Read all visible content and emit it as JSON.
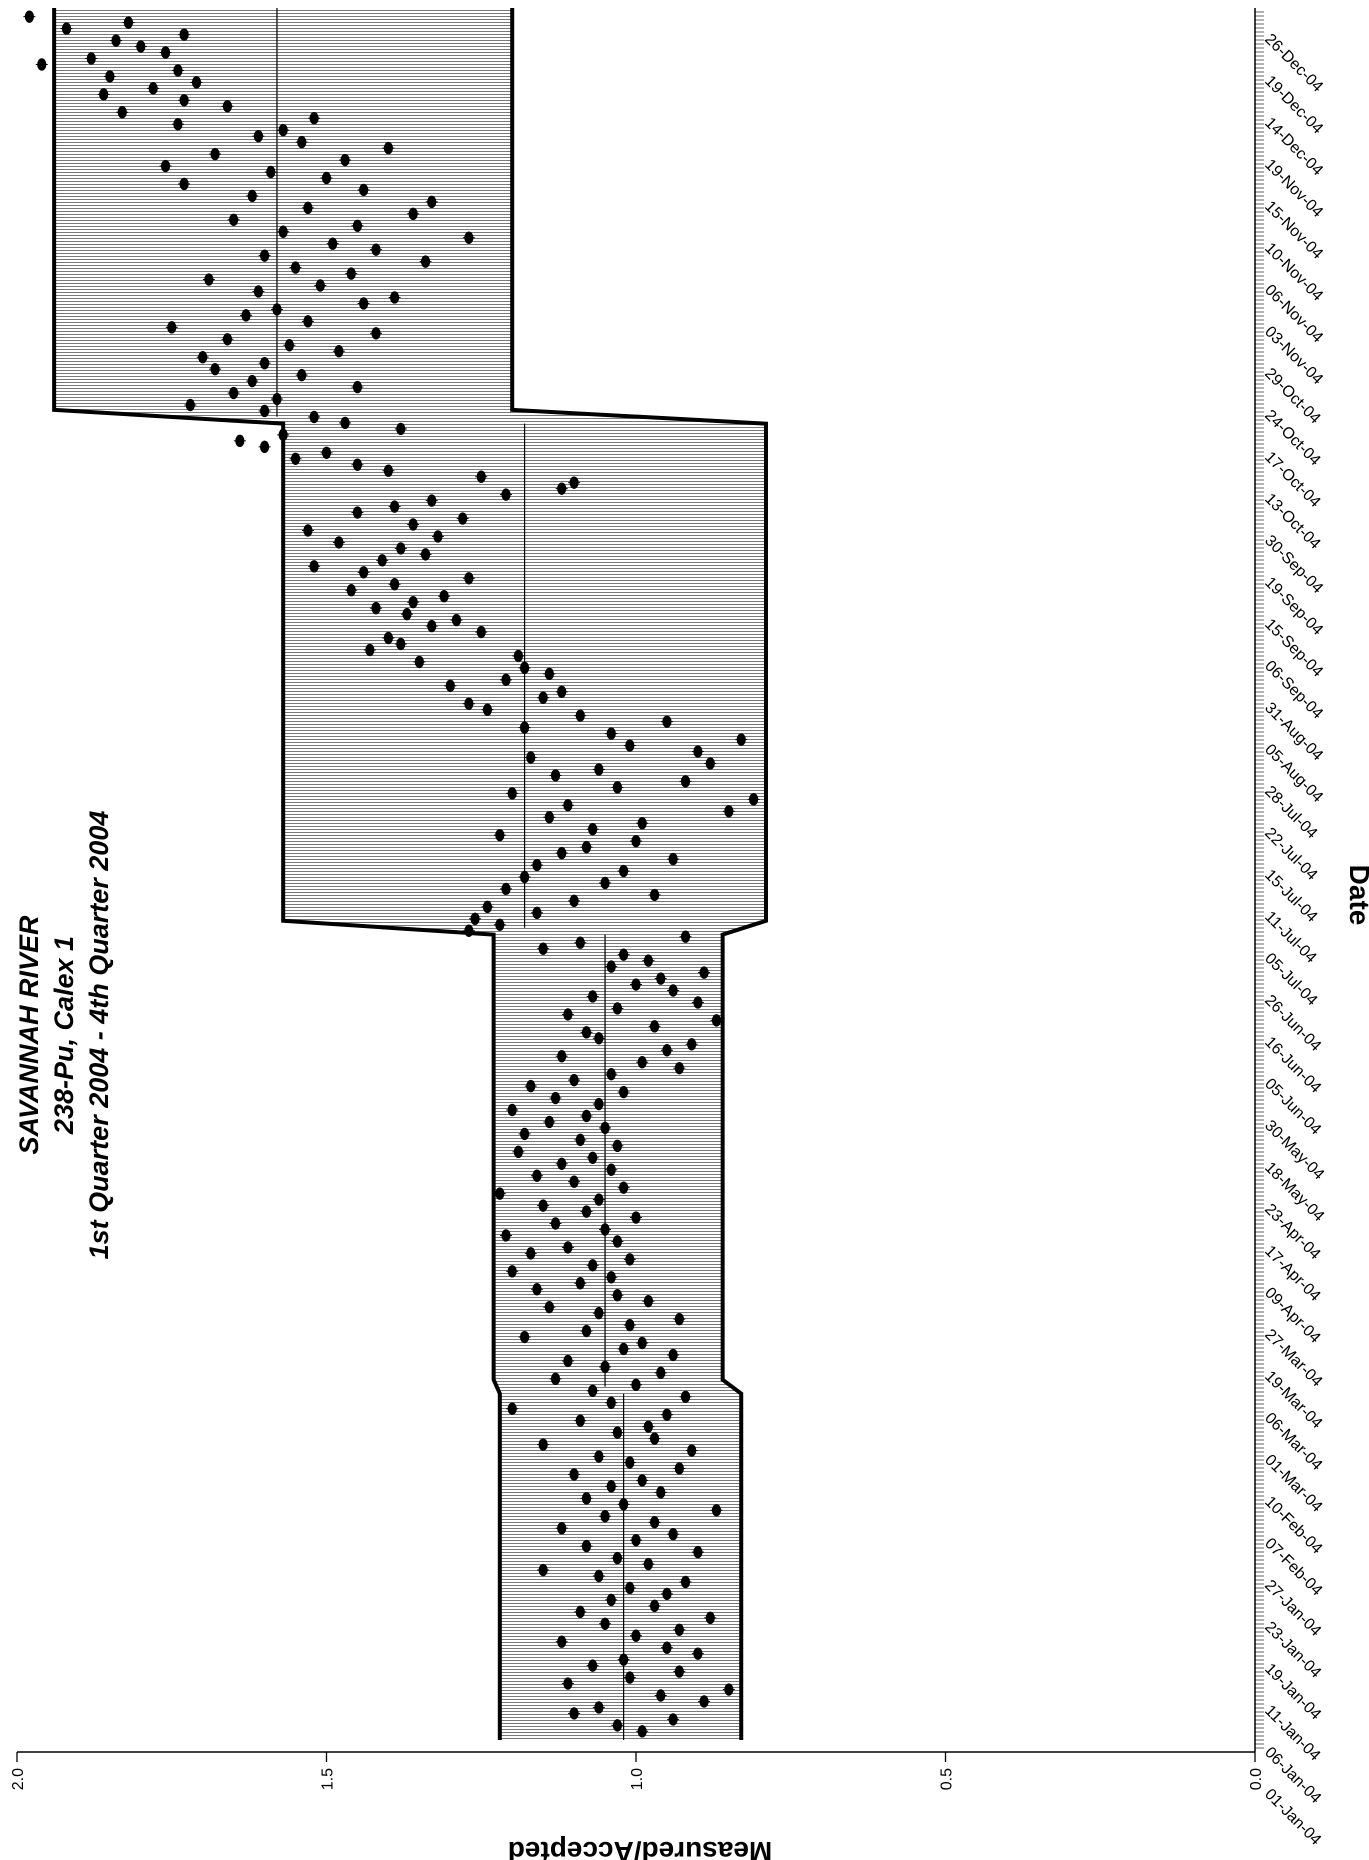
{
  "chart_data": {
    "type": "scatter",
    "title_lines": [
      "SAVANNAH RIVER",
      "238-Pu, Calex 1",
      "1st Quarter 2004 - 4th Quarter 2004"
    ],
    "ylabel": "Measured/Accepted",
    "xlabel": "Date",
    "orientation": "rotated 90 degrees clockwise",
    "y_ticks": [
      "2.0",
      "1.5",
      "1.0",
      "0.5",
      "0.0"
    ],
    "y_tick_values": [
      2.0,
      1.5,
      1.0,
      0.5,
      0.0
    ],
    "ylim": [
      0,
      2.0
    ],
    "date_labels": [
      "01-Jan-04",
      "06-Jan-04",
      "11-Jan-04",
      "19-Jan-04",
      "23-Jan-04",
      "27-Jan-04",
      "07-Feb-04",
      "10-Feb-04",
      "01-Mar-04",
      "06-Mar-04",
      "19-Mar-04",
      "27-Mar-04",
      "09-Apr-04",
      "17-Apr-04",
      "23-Apr-04",
      "18-May-04",
      "30-May-04",
      "05-Jun-04",
      "16-Jun-04",
      "26-Jun-04",
      "05-Jul-04",
      "11-Jul-04",
      "15-Jul-04",
      "22-Jul-04",
      "28-Jul-04",
      "05-Aug-04",
      "31-Aug-04",
      "06-Sep-04",
      "15-Sep-04",
      "19-Sep-04",
      "30-Sep-04",
      "13-Oct-04",
      "17-Oct-04",
      "24-Oct-04",
      "29-Oct-04",
      "03-Nov-04",
      "06-Nov-04",
      "10-Nov-04",
      "15-Nov-04",
      "19-Nov-04",
      "14-Dec-04",
      "19-Dec-04",
      "26-Dec-04"
    ],
    "control_limits": [
      {
        "period": "Q1 2004",
        "upper": 1.22,
        "mean": 1.02,
        "lower": 0.83
      },
      {
        "period": "Q2 2004",
        "upper": 1.23,
        "mean": 1.05,
        "lower": 0.86
      },
      {
        "period": "Q3 2004",
        "upper": 1.57,
        "mean": 1.18,
        "lower": 0.79
      },
      {
        "period": "Q4 2004",
        "upper": 1.94,
        "mean": 1.58,
        "lower": 1.2
      }
    ],
    "series": [
      {
        "values": [
          0.99,
          1.03,
          0.94,
          1.1,
          1.06,
          0.89,
          0.96,
          0.85,
          1.11,
          1.01,
          0.93,
          1.07,
          1.02,
          0.9,
          0.95,
          1.12,
          1.0,
          0.93,
          1.05,
          0.88,
          1.09,
          0.97,
          1.04,
          0.95,
          1.01,
          0.92,
          1.06,
          1.15,
          0.98,
          1.03,
          0.9,
          1.08,
          1.0,
          0.94,
          1.12,
          0.97,
          1.05,
          0.87,
          1.02,
          1.08,
          0.96,
          1.04,
          0.99,
          1.1,
          0.93,
          1.01,
          1.06,
          0.91,
          1.15,
          0.97,
          1.03,
          0.98,
          1.09,
          0.95,
          1.2,
          1.04,
          0.92,
          1.07,
          1.0,
          1.13,
          0.96,
          1.05,
          1.11,
          0.94,
          1.02,
          0.99,
          1.18,
          1.08,
          1.01,
          0.93,
          1.06,
          1.14,
          0.98,
          1.03,
          1.16,
          1.09,
          1.04,
          1.2,
          1.07,
          1.01,
          1.17,
          1.11,
          1.03,
          1.21,
          1.05,
          1.13,
          1.0,
          1.08,
          1.15,
          1.06,
          1.22,
          1.02,
          1.1,
          1.16,
          1.04,
          1.12,
          1.07,
          1.19,
          1.03,
          1.09,
          1.18,
          1.05,
          1.14,
          1.08,
          1.2,
          1.06,
          1.13,
          1.02,
          1.17,
          1.1,
          1.04,
          0.93,
          0.99,
          1.12,
          0.95,
          0.91,
          1.06,
          1.08,
          0.97,
          0.87,
          1.11,
          1.03,
          0.9,
          1.07,
          0.94,
          1.0,
          0.96,
          0.89,
          1.04,
          0.98,
          1.02,
          1.15,
          1.09,
          0.92,
          1.27,
          1.22,
          1.26,
          1.16,
          1.24,
          1.1,
          0.97,
          1.21,
          1.05,
          1.18,
          1.02,
          1.16,
          0.94,
          1.12,
          1.08,
          1.0,
          1.22,
          1.07,
          0.99,
          1.14,
          0.85,
          1.11,
          0.81,
          1.2,
          1.03,
          0.92,
          1.13,
          1.06,
          0.88,
          1.17,
          0.9,
          1.01,
          0.83,
          1.04,
          1.18,
          0.95,
          1.09,
          1.24,
          1.27,
          1.15,
          1.12,
          1.3,
          1.21,
          1.14,
          1.18,
          1.35,
          1.19,
          1.43,
          1.38,
          1.4,
          1.25,
          1.33,
          1.29,
          1.37,
          1.42,
          1.36,
          1.31,
          1.46,
          1.39,
          1.27,
          1.44,
          1.52,
          1.41,
          1.34,
          1.38,
          1.48,
          1.32,
          1.53,
          1.36,
          1.28,
          1.45,
          1.39,
          1.33,
          1.21,
          1.12,
          1.1,
          1.25,
          1.4,
          1.45,
          1.55,
          1.5,
          1.6,
          1.64,
          1.57,
          1.38,
          1.47,
          1.52,
          1.6,
          1.72,
          1.58,
          1.65,
          1.45,
          1.62,
          1.54,
          1.68,
          1.6,
          1.7,
          1.48,
          1.56,
          1.66,
          1.42,
          1.75,
          1.53,
          1.63,
          1.58,
          1.44,
          1.39,
          1.61,
          1.51,
          1.69,
          1.46,
          1.55,
          1.34,
          1.6,
          1.42,
          1.49,
          1.27,
          1.57,
          1.45,
          1.65,
          1.36,
          1.53,
          1.33,
          1.62,
          1.44,
          1.73,
          1.5,
          1.59,
          1.76,
          1.47,
          1.68,
          1.4,
          1.54,
          1.61,
          1.57,
          1.74,
          1.52,
          1.83,
          1.66,
          1.73,
          1.86,
          1.78,
          1.71,
          1.85,
          1.74,
          1.96,
          1.88,
          1.76,
          1.8,
          1.84,
          1.73,
          1.92,
          1.82,
          1.98
        ]
      }
    ]
  }
}
